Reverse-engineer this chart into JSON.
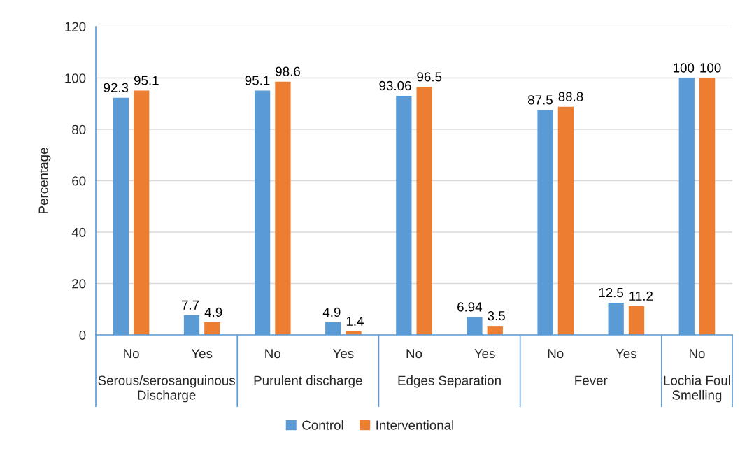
{
  "chart_data": {
    "type": "bar",
    "ylabel": "Percentage",
    "categories": [
      "No",
      "Yes",
      "No",
      "Yes",
      "No",
      "Yes",
      "No",
      "Yes",
      "No"
    ],
    "series": [
      {
        "name": "Control",
        "color": "#5b9bd5",
        "values": [
          92.3,
          7.7,
          95.1,
          4.9,
          93.06,
          6.94,
          87.5,
          12.5,
          100
        ]
      },
      {
        "name": "Interventional",
        "color": "#ed7d31",
        "values": [
          95.1,
          4.9,
          98.6,
          1.4,
          96.5,
          3.5,
          88.8,
          11.2,
          100
        ]
      }
    ],
    "ylim": [
      0,
      120
    ],
    "yticks": [
      0,
      20,
      40,
      60,
      80,
      100,
      120
    ],
    "grid": "y",
    "legend": "bottom",
    "data_labels": true,
    "annotations": [
      "Serous/serosanguinous\nDischarge",
      "Purulent discharge",
      "Edges Separation",
      "Fever",
      "Lochia Foul\nSmelling"
    ]
  }
}
